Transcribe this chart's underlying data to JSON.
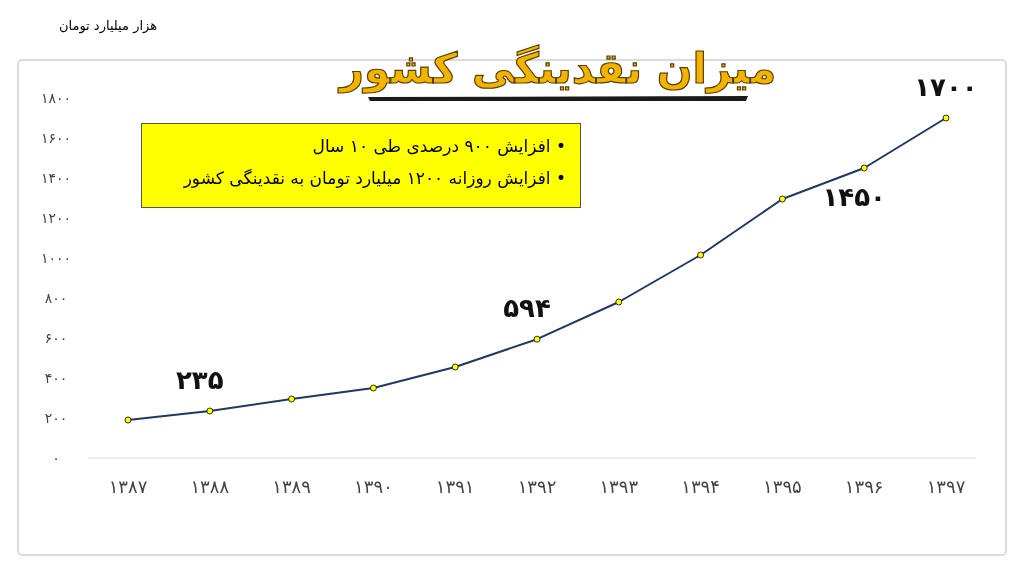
{
  "chart_data": {
    "type": "line",
    "title": "میزان نقدینگی کشور",
    "ylabel": "هزار میلیارد تومان",
    "categories": [
      "۱۳۸۷",
      "۱۳۸۸",
      "۱۳۸۹",
      "۱۳۹۰",
      "۱۳۹۱",
      "۱۳۹۲",
      "۱۳۹۳",
      "۱۳۹۴",
      "۱۳۹۵",
      "۱۳۹۶",
      "۱۳۹۷"
    ],
    "series": [
      {
        "color": "#1f3864",
        "values": [
          190,
          235,
          295,
          350,
          455,
          594,
          780,
          1015,
          1295,
          1450,
          1700
        ],
        "value_labels": [
          null,
          "۲۳۵",
          null,
          null,
          null,
          "۵۹۴",
          null,
          null,
          null,
          "۱۴۵۰",
          "۱۷۰۰"
        ]
      }
    ],
    "ylim": [
      0,
      1800
    ],
    "yticks": [
      {
        "value": 0,
        "label": "۰"
      },
      {
        "value": 200,
        "label": "۲۰۰"
      },
      {
        "value": 400,
        "label": "۴۰۰"
      },
      {
        "value": 600,
        "label": "۶۰۰"
      },
      {
        "value": 800,
        "label": "۸۰۰"
      },
      {
        "value": 1000,
        "label": "۱۰۰۰"
      },
      {
        "value": 1200,
        "label": "۱۲۰۰"
      },
      {
        "value": 1400,
        "label": "۱۴۰۰"
      },
      {
        "value": 1600,
        "label": "۱۶۰۰"
      },
      {
        "value": 1800,
        "label": "۱۸۰۰"
      }
    ],
    "grid": false,
    "marker": "circle",
    "line_style": "solid",
    "annotations": [
      "• افزایش ۹۰۰ درصدی طی ۱۰ سال",
      "• افزایش روزانه ۱۲۰۰ میلیارد تومان به نقدینگی کشور"
    ]
  }
}
